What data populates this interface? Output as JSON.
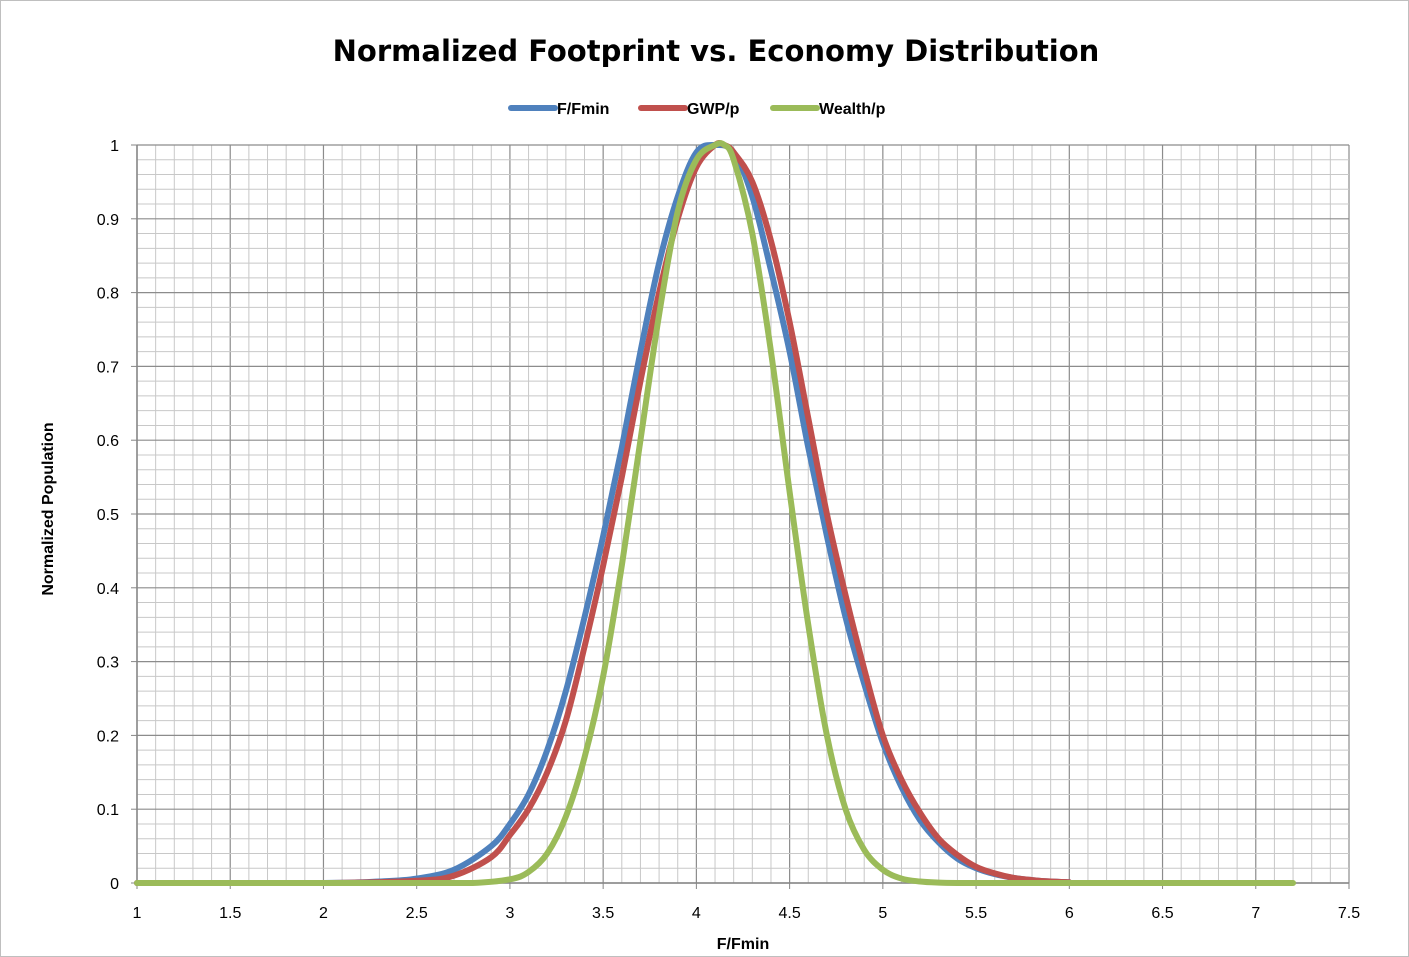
{
  "chart_data": {
    "type": "line",
    "title": "Normalized Footprint vs. Economy Distribution",
    "xlabel": "F/Fmin",
    "ylabel": "Normalized Population",
    "xlim": [
      1,
      7.5
    ],
    "ylim": [
      0,
      1
    ],
    "x_ticks": [
      "1",
      "1.5",
      "2",
      "2.5",
      "3",
      "3.5",
      "4",
      "4.5",
      "5",
      "5.5",
      "6",
      "6.5",
      "7",
      "7.5"
    ],
    "y_ticks": [
      "0",
      "0.1",
      "0.2",
      "0.3",
      "0.4",
      "0.5",
      "0.6",
      "0.7",
      "0.8",
      "0.9",
      "1"
    ],
    "grid": true,
    "legend_position": "top",
    "series": [
      {
        "name": "F/Fmin",
        "color": "#4f81bd",
        "x": [
          1.0,
          2.0,
          2.3,
          2.5,
          2.7,
          2.9,
          3.0,
          3.1,
          3.2,
          3.3,
          3.4,
          3.5,
          3.6,
          3.7,
          3.8,
          3.9,
          4.0,
          4.1,
          4.2,
          4.3,
          4.4,
          4.5,
          4.6,
          4.7,
          4.8,
          4.9,
          5.0,
          5.1,
          5.2,
          5.3,
          5.4,
          5.5,
          5.6,
          5.7,
          5.8,
          5.9,
          6.0
        ],
        "y": [
          0.0,
          0.0,
          0.002,
          0.006,
          0.018,
          0.05,
          0.08,
          0.12,
          0.18,
          0.26,
          0.36,
          0.47,
          0.59,
          0.72,
          0.84,
          0.93,
          0.99,
          1.0,
          0.99,
          0.93,
          0.83,
          0.72,
          0.59,
          0.47,
          0.36,
          0.27,
          0.19,
          0.13,
          0.085,
          0.055,
          0.033,
          0.02,
          0.012,
          0.007,
          0.004,
          0.002,
          0.001
        ]
      },
      {
        "name": "GWP/p",
        "color": "#c0504d",
        "x": [
          1.0,
          2.0,
          2.5,
          2.7,
          2.9,
          3.0,
          3.1,
          3.2,
          3.3,
          3.4,
          3.5,
          3.6,
          3.7,
          3.8,
          3.9,
          4.0,
          4.1,
          4.15,
          4.2,
          4.3,
          4.4,
          4.5,
          4.6,
          4.7,
          4.8,
          4.9,
          5.0,
          5.1,
          5.2,
          5.3,
          5.4,
          5.5,
          5.6,
          5.7,
          5.8,
          5.9,
          6.0
        ],
        "y": [
          0.0,
          0.0,
          0.003,
          0.01,
          0.035,
          0.065,
          0.1,
          0.15,
          0.22,
          0.32,
          0.43,
          0.55,
          0.68,
          0.8,
          0.9,
          0.97,
          1.0,
          1.0,
          0.99,
          0.95,
          0.87,
          0.76,
          0.63,
          0.5,
          0.39,
          0.29,
          0.2,
          0.14,
          0.095,
          0.06,
          0.038,
          0.022,
          0.013,
          0.007,
          0.004,
          0.002,
          0.001
        ]
      },
      {
        "name": "Wealth/p",
        "color": "#9bbb59",
        "x": [
          1.0,
          2.5,
          2.8,
          3.0,
          3.1,
          3.2,
          3.3,
          3.4,
          3.5,
          3.6,
          3.7,
          3.8,
          3.9,
          4.0,
          4.1,
          4.15,
          4.2,
          4.3,
          4.4,
          4.5,
          4.6,
          4.7,
          4.8,
          4.9,
          5.0,
          5.1,
          5.2,
          5.3,
          5.4,
          5.5,
          6.0,
          7.2
        ],
        "y": [
          0.0,
          0.0,
          0.0,
          0.005,
          0.015,
          0.04,
          0.09,
          0.17,
          0.28,
          0.43,
          0.6,
          0.77,
          0.91,
          0.98,
          1.0,
          1.0,
          0.98,
          0.88,
          0.72,
          0.53,
          0.35,
          0.2,
          0.1,
          0.045,
          0.018,
          0.006,
          0.002,
          0.0005,
          0.0,
          0.0,
          0.0,
          0.0
        ]
      }
    ]
  }
}
